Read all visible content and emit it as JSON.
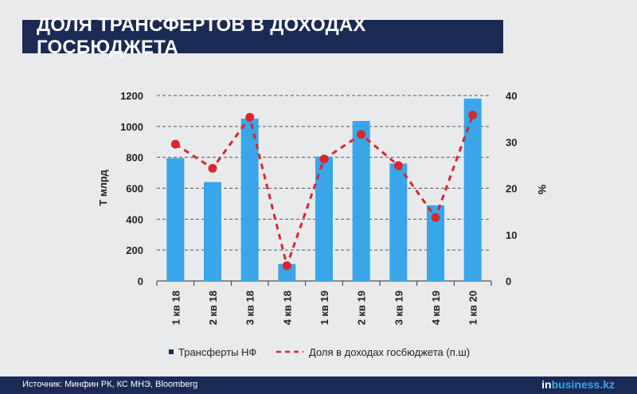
{
  "title": "ДОЛЯ ТРАНСФЕРТОВ В ДОХОДАХ ГОСБЮДЖЕТА",
  "source": "Источник: Минфин РК, КС МНЭ, Bloomberg",
  "logo": {
    "part1": "in",
    "part2": "business.kz"
  },
  "colors": {
    "bar": "#3aa6ea",
    "line": "#d9272e",
    "title_bg": "#1b2a55",
    "background": "#e9eaec",
    "grid": "#555555"
  },
  "chart_data": {
    "type": "bar+line",
    "categories": [
      "1 кв 18",
      "2 кв 18",
      "3 кв 18",
      "4 кв 18",
      "1 кв 19",
      "2 кв 19",
      "3 кв 19",
      "4 кв 19",
      "1 кв 20"
    ],
    "series": [
      {
        "name": "Трансферты НФ",
        "type": "bar",
        "axis": "left",
        "values": [
          795,
          640,
          1050,
          110,
          805,
          1035,
          760,
          490,
          1180
        ]
      },
      {
        "name": "Доля в доходах госбюджета (п.ш)",
        "type": "line",
        "style": "dashed",
        "axis": "right",
        "values": [
          29.5,
          24.3,
          35.3,
          3.3,
          26.3,
          31.6,
          24.9,
          13.7,
          35.8
        ]
      }
    ],
    "ylabel": "Т млрд",
    "y2label": "%",
    "ylim": [
      0,
      1200
    ],
    "y2lim": [
      0,
      40
    ],
    "yticks": [
      "0",
      "200",
      "400",
      "600",
      "800",
      "1000",
      "1200"
    ],
    "y2ticks": [
      "0",
      "10",
      "20",
      "30",
      "40"
    ],
    "grid": "horizontal dashed",
    "legend_position": "bottom"
  }
}
